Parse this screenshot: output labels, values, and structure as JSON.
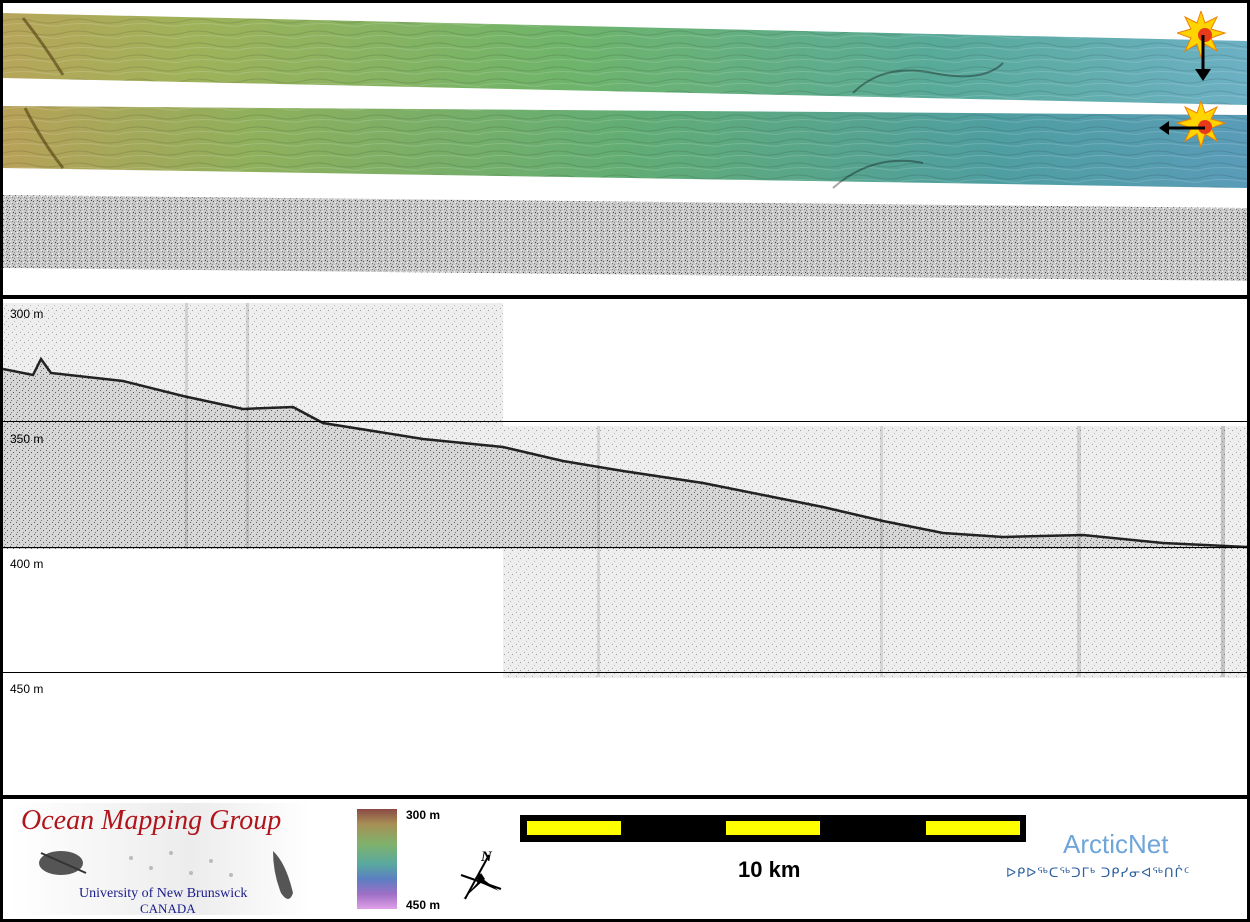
{
  "depth_axis": {
    "labels": [
      "300 m",
      "350 m",
      "400 m",
      "450 m"
    ]
  },
  "logo": {
    "title": "Ocean Mapping Group",
    "university": "University of New Brunswick",
    "country": "CANADA"
  },
  "colorbar": {
    "top_label": "300 m",
    "bottom_label": "450 m"
  },
  "north_arrow": {
    "letter": "N"
  },
  "scale_bar": {
    "label": "10 km"
  },
  "partner": {
    "name": "ArcticNet",
    "syllabics": "ᐅᑭᐅᖅᑕᖅᑐᒥᒃ ᑐᑭᓯᓂᐊᖅᑎᒌᑦ"
  },
  "colors": {
    "frame": "#000000",
    "sun": "#ffd400",
    "scale_fill": "#ffff00",
    "title_red": "#b0151c",
    "text_blue": "#1a1a8c",
    "arctic_blue": "#6fa5d8"
  },
  "icons": [
    "sun-illumination-icon",
    "arrow-down-icon",
    "arrow-left-icon",
    "compass-rose-icon"
  ]
}
